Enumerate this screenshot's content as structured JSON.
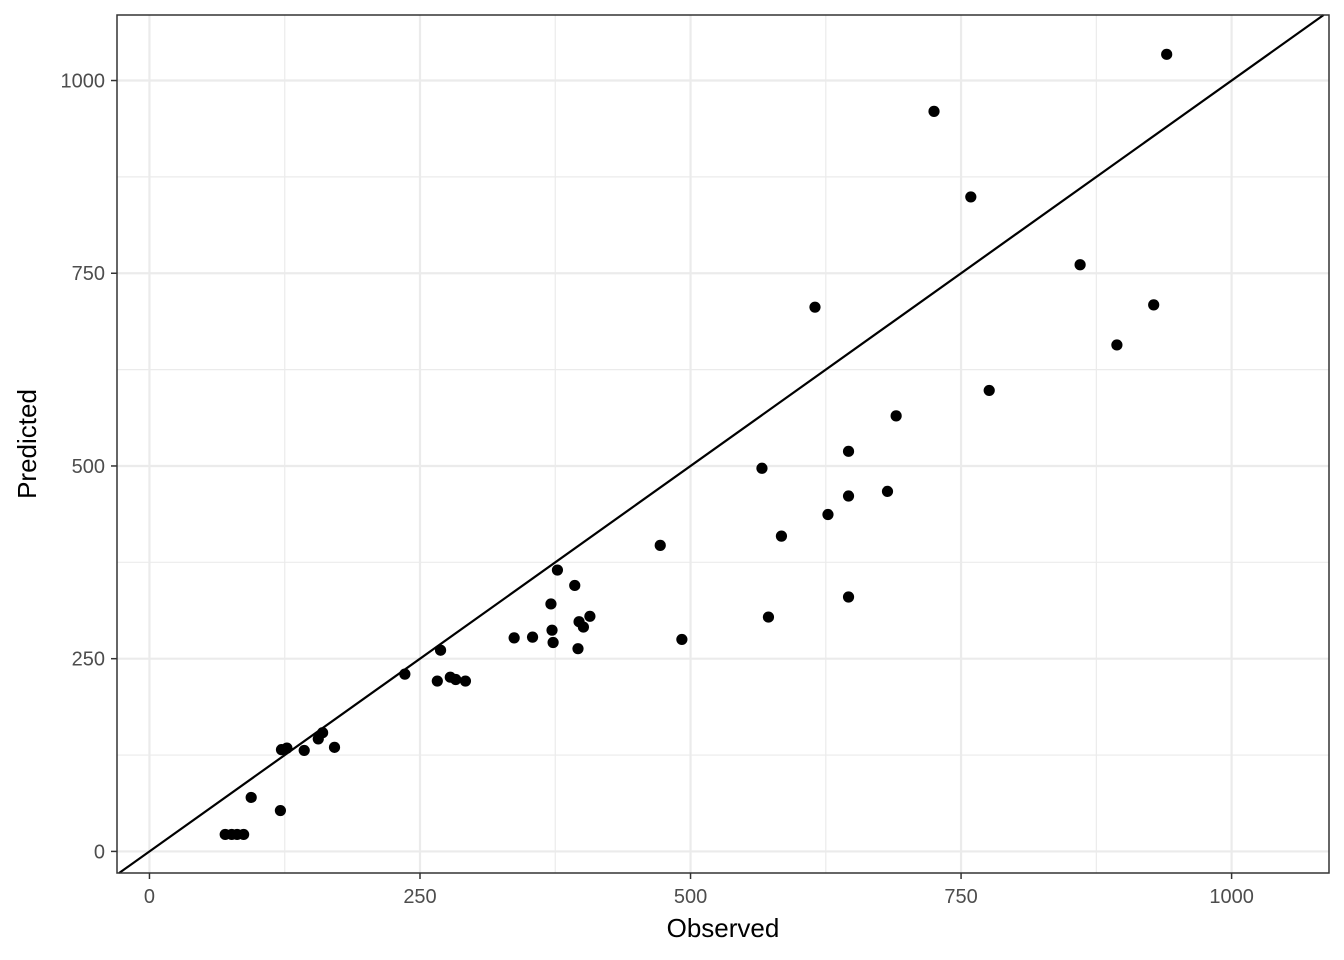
{
  "chart_data": {
    "type": "scatter",
    "title": "",
    "xlabel": "Observed",
    "ylabel": "Predicted",
    "xlim": [
      -30,
      1090
    ],
    "ylim": [
      -28,
      1085
    ],
    "x_ticks": [
      0,
      250,
      500,
      750,
      1000
    ],
    "y_ticks": [
      0,
      250,
      500,
      750,
      1000
    ],
    "x_tick_labels": [
      "0",
      "250",
      "500",
      "750",
      "1000"
    ],
    "y_tick_labels": [
      "0",
      "250",
      "500",
      "750",
      "1000"
    ],
    "grid": true,
    "reference_line": {
      "type": "identity",
      "slope": 1,
      "intercept": 0
    },
    "points": [
      {
        "x": 70,
        "y": 22
      },
      {
        "x": 76,
        "y": 22
      },
      {
        "x": 81,
        "y": 22
      },
      {
        "x": 87,
        "y": 22
      },
      {
        "x": 94,
        "y": 70
      },
      {
        "x": 121,
        "y": 53
      },
      {
        "x": 122,
        "y": 132
      },
      {
        "x": 127,
        "y": 134
      },
      {
        "x": 143,
        "y": 131
      },
      {
        "x": 156,
        "y": 146
      },
      {
        "x": 160,
        "y": 154
      },
      {
        "x": 171,
        "y": 135
      },
      {
        "x": 236,
        "y": 230
      },
      {
        "x": 266,
        "y": 221
      },
      {
        "x": 269,
        "y": 261
      },
      {
        "x": 278,
        "y": 226
      },
      {
        "x": 283,
        "y": 223
      },
      {
        "x": 292,
        "y": 221
      },
      {
        "x": 337,
        "y": 277
      },
      {
        "x": 354,
        "y": 278
      },
      {
        "x": 371,
        "y": 321
      },
      {
        "x": 372,
        "y": 287
      },
      {
        "x": 373,
        "y": 271
      },
      {
        "x": 377,
        "y": 365
      },
      {
        "x": 393,
        "y": 345
      },
      {
        "x": 396,
        "y": 263
      },
      {
        "x": 397,
        "y": 298
      },
      {
        "x": 401,
        "y": 291
      },
      {
        "x": 407,
        "y": 305
      },
      {
        "x": 472,
        "y": 397
      },
      {
        "x": 492,
        "y": 275
      },
      {
        "x": 566,
        "y": 497
      },
      {
        "x": 572,
        "y": 304
      },
      {
        "x": 584,
        "y": 409
      },
      {
        "x": 615,
        "y": 706
      },
      {
        "x": 627,
        "y": 437
      },
      {
        "x": 646,
        "y": 519
      },
      {
        "x": 646,
        "y": 461
      },
      {
        "x": 646,
        "y": 330
      },
      {
        "x": 682,
        "y": 467
      },
      {
        "x": 690,
        "y": 565
      },
      {
        "x": 725,
        "y": 960
      },
      {
        "x": 759,
        "y": 849
      },
      {
        "x": 776,
        "y": 598
      },
      {
        "x": 860,
        "y": 761
      },
      {
        "x": 894,
        "y": 657
      },
      {
        "x": 928,
        "y": 709
      },
      {
        "x": 940,
        "y": 1034
      }
    ],
    "colors": {
      "point": "#000000",
      "line": "#000000",
      "grid_major": "#ebebeb",
      "grid_minor": "#ebebeb",
      "border": "#333333",
      "tick_label": "#4d4d4d"
    }
  }
}
